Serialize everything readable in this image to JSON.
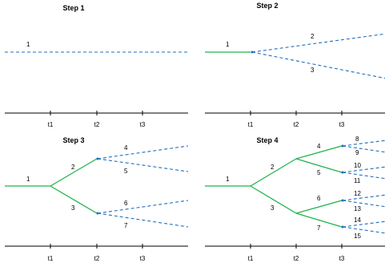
{
  "colors": {
    "solid": "#22b34c",
    "dashed": "#1f6fbf",
    "axis": "#000000"
  },
  "tick_labels": [
    "t1",
    "t2",
    "t3"
  ],
  "panels": [
    {
      "title": "Step 1",
      "branches": [
        {
          "label": "1",
          "style": "dashed"
        }
      ]
    },
    {
      "title": "Step 2",
      "branches": [
        {
          "label": "1",
          "style": "solid"
        },
        {
          "label": "2",
          "style": "dashed"
        },
        {
          "label": "3",
          "style": "dashed"
        }
      ]
    },
    {
      "title": "Step 3",
      "branches": [
        {
          "label": "1",
          "style": "solid"
        },
        {
          "label": "2",
          "style": "solid"
        },
        {
          "label": "3",
          "style": "solid"
        },
        {
          "label": "4",
          "style": "dashed"
        },
        {
          "label": "5",
          "style": "dashed"
        },
        {
          "label": "6",
          "style": "dashed"
        },
        {
          "label": "7",
          "style": "dashed"
        }
      ]
    },
    {
      "title": "Step 4",
      "branches": [
        {
          "label": "1",
          "style": "solid"
        },
        {
          "label": "2",
          "style": "solid"
        },
        {
          "label": "3",
          "style": "solid"
        },
        {
          "label": "4",
          "style": "solid"
        },
        {
          "label": "5",
          "style": "solid"
        },
        {
          "label": "6",
          "style": "solid"
        },
        {
          "label": "7",
          "style": "solid"
        },
        {
          "label": "8",
          "style": "dashed"
        },
        {
          "label": "9",
          "style": "dashed"
        },
        {
          "label": "10",
          "style": "dashed"
        },
        {
          "label": "11",
          "style": "dashed"
        },
        {
          "label": "12",
          "style": "dashed"
        },
        {
          "label": "13",
          "style": "dashed"
        },
        {
          "label": "14",
          "style": "dashed"
        },
        {
          "label": "15",
          "style": "dashed"
        }
      ]
    }
  ]
}
